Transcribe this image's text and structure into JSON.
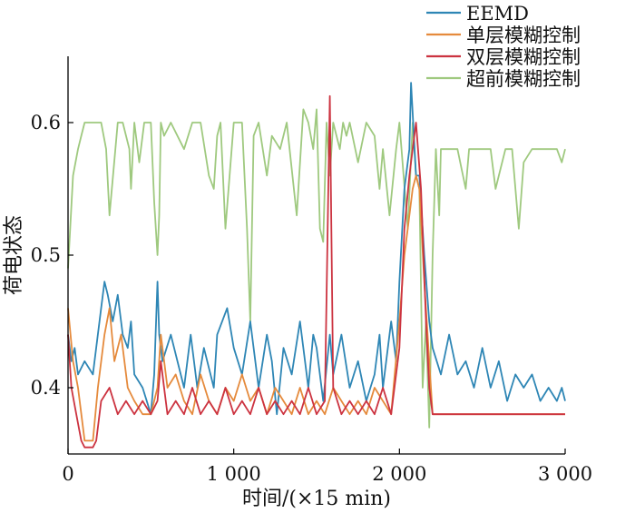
{
  "chart_data": {
    "type": "line",
    "xlabel": "时间/(×15 min)",
    "ylabel": "荷电状态",
    "xlim": [
      0,
      3000
    ],
    "ylim": [
      0.35,
      0.65
    ],
    "x_ticks": [
      {
        "value": 0,
        "label": "0"
      },
      {
        "value": 1000,
        "label": "1 000"
      },
      {
        "value": 2000,
        "label": "2 000"
      },
      {
        "value": 3000,
        "label": "3 000"
      }
    ],
    "y_ticks": [
      {
        "value": 0.4,
        "label": "0.4"
      },
      {
        "value": 0.5,
        "label": "0.5"
      },
      {
        "value": 0.6,
        "label": "0.6"
      }
    ],
    "grid": false,
    "legend_position": "top-right",
    "series": [
      {
        "name": "超前模糊控制",
        "color": "#9fc97f",
        "x": [
          0,
          30,
          60,
          80,
          100,
          150,
          200,
          230,
          250,
          300,
          330,
          370,
          380,
          400,
          430,
          460,
          500,
          520,
          540,
          550,
          560,
          580,
          620,
          700,
          750,
          800,
          850,
          880,
          900,
          920,
          950,
          1000,
          1050,
          1080,
          1100,
          1120,
          1150,
          1200,
          1230,
          1280,
          1320,
          1380,
          1420,
          1450,
          1480,
          1500,
          1520,
          1540,
          1560,
          1580,
          1600,
          1640,
          1660,
          1680,
          1700,
          1750,
          1800,
          1850,
          1880,
          1900,
          1940,
          1980,
          2000,
          2050,
          2080,
          2100,
          2120,
          2140,
          2160,
          2180,
          2200,
          2220,
          2240,
          2250,
          2300,
          2350,
          2400,
          2420,
          2450,
          2480,
          2500,
          2550,
          2580,
          2600,
          2640,
          2680,
          2720,
          2750,
          2800,
          2850,
          2900,
          2950,
          2980,
          3000
        ],
        "values": [
          0.49,
          0.56,
          0.58,
          0.59,
          0.6,
          0.6,
          0.6,
          0.58,
          0.53,
          0.6,
          0.6,
          0.58,
          0.55,
          0.6,
          0.57,
          0.6,
          0.6,
          0.54,
          0.5,
          0.53,
          0.6,
          0.59,
          0.6,
          0.58,
          0.6,
          0.6,
          0.56,
          0.55,
          0.59,
          0.6,
          0.52,
          0.6,
          0.6,
          0.52,
          0.45,
          0.59,
          0.6,
          0.56,
          0.59,
          0.58,
          0.6,
          0.53,
          0.61,
          0.6,
          0.58,
          0.61,
          0.52,
          0.51,
          0.6,
          0.56,
          0.6,
          0.58,
          0.6,
          0.59,
          0.6,
          0.57,
          0.6,
          0.59,
          0.55,
          0.58,
          0.53,
          0.58,
          0.6,
          0.52,
          0.6,
          0.56,
          0.55,
          0.4,
          0.45,
          0.37,
          0.5,
          0.58,
          0.53,
          0.58,
          0.58,
          0.58,
          0.55,
          0.58,
          0.58,
          0.58,
          0.58,
          0.58,
          0.55,
          0.56,
          0.58,
          0.58,
          0.52,
          0.57,
          0.58,
          0.58,
          0.58,
          0.58,
          0.57,
          0.58
        ]
      },
      {
        "name": "EEMD",
        "color": "#2e86b5",
        "x": [
          0,
          20,
          40,
          60,
          100,
          150,
          200,
          220,
          240,
          270,
          300,
          330,
          360,
          380,
          400,
          450,
          500,
          520,
          540,
          550,
          570,
          620,
          700,
          740,
          780,
          820,
          880,
          900,
          960,
          1000,
          1050,
          1100,
          1150,
          1200,
          1230,
          1260,
          1300,
          1350,
          1400,
          1450,
          1480,
          1500,
          1540,
          1580,
          1600,
          1650,
          1700,
          1750,
          1800,
          1850,
          1880,
          1900,
          1950,
          1980,
          2000,
          2030,
          2060,
          2070,
          2100,
          2120,
          2150,
          2180,
          2200,
          2250,
          2300,
          2350,
          2400,
          2450,
          2500,
          2550,
          2600,
          2650,
          2700,
          2750,
          2800,
          2850,
          2900,
          2950,
          2980,
          3000
        ],
        "values": [
          0.44,
          0.42,
          0.43,
          0.41,
          0.42,
          0.41,
          0.46,
          0.48,
          0.47,
          0.45,
          0.47,
          0.44,
          0.43,
          0.45,
          0.41,
          0.4,
          0.38,
          0.41,
          0.48,
          0.44,
          0.42,
          0.44,
          0.4,
          0.44,
          0.4,
          0.43,
          0.4,
          0.44,
          0.46,
          0.43,
          0.41,
          0.45,
          0.4,
          0.44,
          0.42,
          0.38,
          0.43,
          0.41,
          0.45,
          0.4,
          0.44,
          0.43,
          0.39,
          0.44,
          0.41,
          0.44,
          0.4,
          0.42,
          0.39,
          0.41,
          0.44,
          0.4,
          0.45,
          0.42,
          0.48,
          0.55,
          0.58,
          0.63,
          0.56,
          0.56,
          0.5,
          0.45,
          0.43,
          0.41,
          0.44,
          0.41,
          0.42,
          0.4,
          0.43,
          0.4,
          0.42,
          0.39,
          0.41,
          0.4,
          0.41,
          0.39,
          0.4,
          0.39,
          0.4,
          0.39
        ]
      },
      {
        "name": "单层模糊控制",
        "color": "#e58a3c",
        "x": [
          0,
          30,
          60,
          100,
          150,
          180,
          220,
          250,
          280,
          320,
          360,
          400,
          450,
          500,
          540,
          560,
          600,
          650,
          700,
          750,
          800,
          850,
          900,
          950,
          1000,
          1050,
          1100,
          1150,
          1200,
          1250,
          1300,
          1350,
          1400,
          1450,
          1500,
          1550,
          1600,
          1650,
          1700,
          1750,
          1800,
          1850,
          1900,
          1950,
          2000,
          2030,
          2050,
          2080,
          2100,
          2120,
          2150,
          2180,
          2200,
          2250,
          2300,
          2400,
          2500,
          2600,
          2700,
          2800,
          2900,
          3000
        ],
        "values": [
          0.46,
          0.42,
          0.4,
          0.36,
          0.36,
          0.4,
          0.44,
          0.46,
          0.42,
          0.44,
          0.4,
          0.39,
          0.38,
          0.38,
          0.4,
          0.44,
          0.4,
          0.41,
          0.39,
          0.38,
          0.41,
          0.39,
          0.38,
          0.4,
          0.39,
          0.41,
          0.39,
          0.4,
          0.38,
          0.4,
          0.39,
          0.38,
          0.4,
          0.38,
          0.39,
          0.38,
          0.4,
          0.39,
          0.38,
          0.39,
          0.38,
          0.4,
          0.39,
          0.38,
          0.45,
          0.5,
          0.52,
          0.55,
          0.56,
          0.55,
          0.48,
          0.42,
          0.38,
          0.38,
          0.38,
          0.38,
          0.38,
          0.38,
          0.38,
          0.38,
          0.38,
          0.38
        ]
      },
      {
        "name": "双层模糊控制",
        "color": "#cc3340",
        "x": [
          0,
          20,
          50,
          80,
          100,
          150,
          170,
          200,
          250,
          300,
          350,
          400,
          450,
          500,
          540,
          560,
          580,
          600,
          650,
          700,
          750,
          800,
          850,
          900,
          950,
          1000,
          1050,
          1100,
          1150,
          1200,
          1250,
          1300,
          1350,
          1400,
          1450,
          1500,
          1550,
          1580,
          1600,
          1650,
          1700,
          1750,
          1800,
          1850,
          1900,
          1950,
          2000,
          2030,
          2060,
          2080,
          2100,
          2130,
          2160,
          2180,
          2200,
          2250,
          2300,
          2400,
          2500,
          2600,
          2700,
          2800,
          2900,
          3000
        ],
        "values": [
          0.44,
          0.4,
          0.38,
          0.36,
          0.355,
          0.355,
          0.36,
          0.39,
          0.4,
          0.38,
          0.39,
          0.38,
          0.39,
          0.38,
          0.39,
          0.42,
          0.4,
          0.38,
          0.39,
          0.38,
          0.4,
          0.38,
          0.39,
          0.38,
          0.4,
          0.38,
          0.39,
          0.38,
          0.4,
          0.38,
          0.39,
          0.38,
          0.39,
          0.38,
          0.4,
          0.38,
          0.39,
          0.62,
          0.4,
          0.38,
          0.39,
          0.38,
          0.39,
          0.38,
          0.4,
          0.38,
          0.43,
          0.52,
          0.56,
          0.58,
          0.6,
          0.55,
          0.45,
          0.4,
          0.38,
          0.38,
          0.38,
          0.38,
          0.38,
          0.38,
          0.38,
          0.38,
          0.38,
          0.38
        ]
      }
    ],
    "legend_order": [
      "EEMD",
      "单层模糊控制",
      "双层模糊控制",
      "超前模糊控制"
    ]
  }
}
